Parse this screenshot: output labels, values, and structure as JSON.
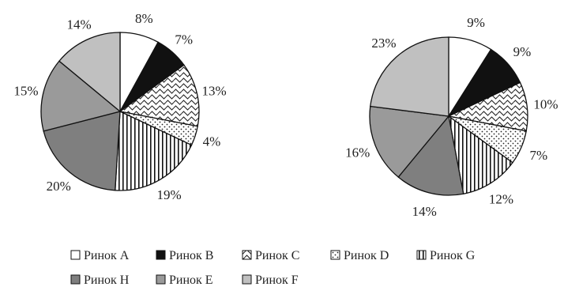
{
  "legend": [
    {
      "key": "A",
      "label": "Ринок A",
      "pattern": "white"
    },
    {
      "key": "B",
      "label": "Ринок B",
      "pattern": "black"
    },
    {
      "key": "C",
      "label": "Ринок C",
      "pattern": "wave"
    },
    {
      "key": "D",
      "label": "Ринок D",
      "pattern": "dots"
    },
    {
      "key": "G",
      "label": "Ринок G",
      "pattern": "vstripes"
    },
    {
      "key": "H",
      "label": "Ринок H",
      "pattern": "darkgray"
    },
    {
      "key": "E",
      "label": "Ринок E",
      "pattern": "midgray"
    },
    {
      "key": "F",
      "label": "Ринок F",
      "pattern": "lightgray"
    }
  ],
  "chart_data": [
    {
      "type": "pie",
      "categories": [
        "Ринок A",
        "Ринок B",
        "Ринок C",
        "Ринок D",
        "Ринок G",
        "Ринок H",
        "Ринок E",
        "Ринок F"
      ],
      "values": [
        8,
        7,
        13,
        4,
        19,
        20,
        15,
        14
      ],
      "labels": [
        "8%",
        "7%",
        "13%",
        "4%",
        "19%",
        "20%",
        "15%",
        "14%"
      ]
    },
    {
      "type": "pie",
      "categories": [
        "Ринок A",
        "Ринок B",
        "Ринок C",
        "Ринок D",
        "Ринок G",
        "Ринок H",
        "Ринок E",
        "Ринок F"
      ],
      "values": [
        9,
        9,
        10,
        7,
        12,
        14,
        16,
        23
      ],
      "labels": [
        "9%",
        "9%",
        "10%",
        "7%",
        "12%",
        "14%",
        "16%",
        "23%"
      ]
    }
  ]
}
